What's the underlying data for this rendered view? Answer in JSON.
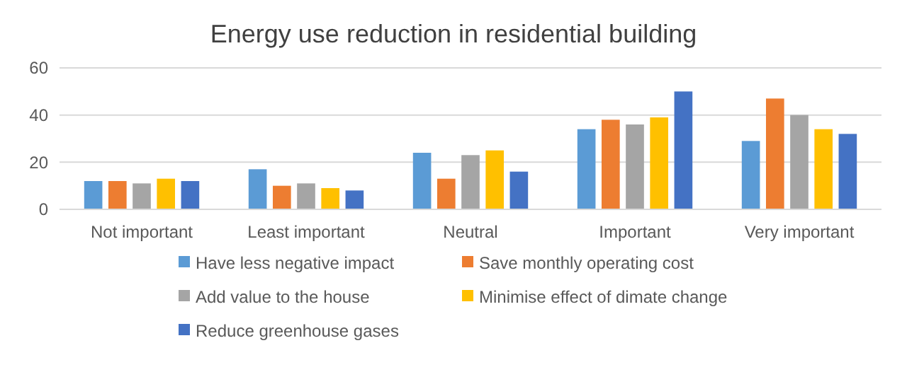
{
  "chart_data": {
    "type": "bar",
    "title": "Energy use reduction in residential building",
    "categories": [
      "Not important",
      "Least important",
      "Neutral",
      "Important",
      "Very important"
    ],
    "series": [
      {
        "name": "Have less negative impact",
        "color": "#5b9bd5",
        "values": [
          12,
          17,
          24,
          34,
          29
        ]
      },
      {
        "name": "Save monthly operating cost",
        "color": "#ed7d31",
        "values": [
          12,
          10,
          13,
          38,
          47
        ]
      },
      {
        "name": "Add value to the house",
        "color": "#a5a5a5",
        "values": [
          11,
          11,
          23,
          36,
          40
        ]
      },
      {
        "name": "Minimise effect of dimate change",
        "color": "#ffc000",
        "values": [
          13,
          9,
          25,
          39,
          34
        ]
      },
      {
        "name": "Reduce greenhouse gases",
        "color": "#4472c4",
        "values": [
          12,
          8,
          16,
          50,
          32
        ]
      }
    ],
    "ylim": [
      0,
      60
    ],
    "yticks": [
      0,
      20,
      40,
      60
    ],
    "grid": "y",
    "legend": "bottom"
  }
}
